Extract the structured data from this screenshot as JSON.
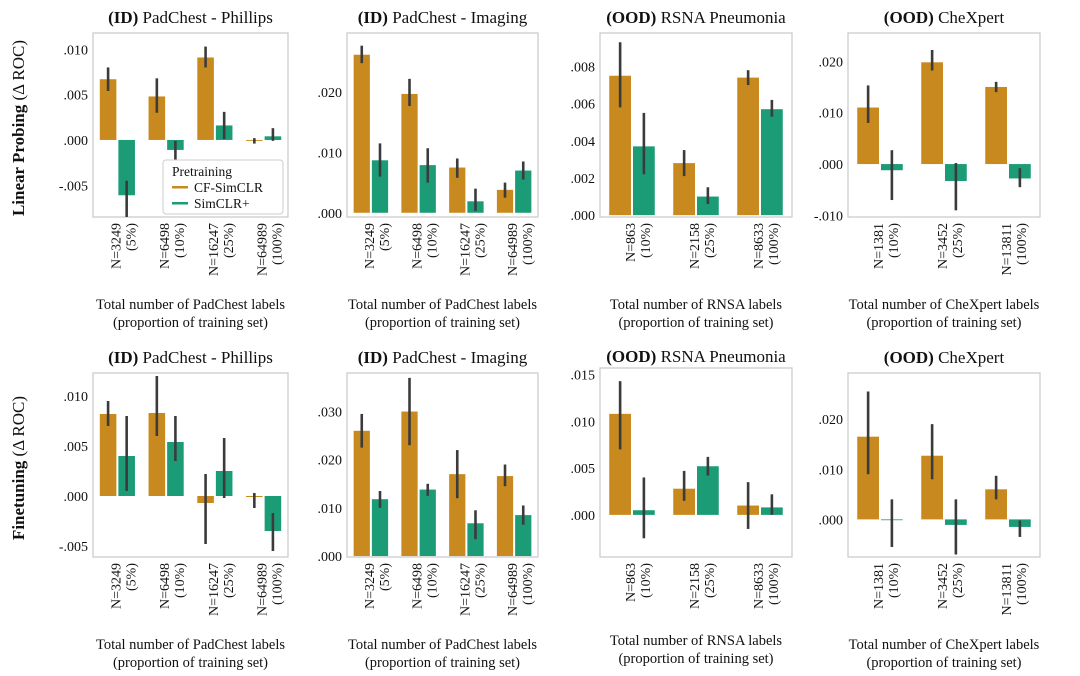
{
  "figure": {
    "row_labels": [
      {
        "bold": "Linear Probing",
        "rest": " (Δ ROC)"
      },
      {
        "bold": "Finetuning",
        "rest": " (Δ ROC)"
      }
    ],
    "legend": {
      "title": "Pretraining",
      "entries": [
        {
          "name": "CF-SimCLR",
          "color": "#c88a1e"
        },
        {
          "name": "SimCLR+",
          "color": "#1b9c76"
        }
      ]
    }
  },
  "chart_data": [
    {
      "type": "bar",
      "title_tag": "(ID)",
      "title_rest": " PadChest - Phillips",
      "xlabel_line1": "Total number of PadChest labels",
      "xlabel_line2": "(proportion of training set)",
      "ylabel": "Linear Probing (Δ ROC)",
      "categories": [
        {
          "n": "N=3249",
          "pct": "(5%)"
        },
        {
          "n": "N=6498",
          "pct": "(10%)"
        },
        {
          "n": "N=16247",
          "pct": "(25%)"
        },
        {
          "n": "N=64989",
          "pct": "(100%)"
        }
      ],
      "ylim": [
        -0.0085,
        0.0118
      ],
      "yticks": [
        {
          "v": 0.01,
          "label": ".010"
        },
        {
          "v": 0.005,
          "label": ".005"
        },
        {
          "v": 0.0,
          "label": ".000"
        },
        {
          "v": -0.005,
          "label": "-.005"
        }
      ],
      "series": [
        {
          "name": "CF-SimCLR",
          "values": [
            0.0067,
            0.0048,
            0.0091,
            -0.0001
          ],
          "ci": [
            [
              0.0054,
              0.008
            ],
            [
              0.003,
              0.0068
            ],
            [
              0.008,
              0.0103
            ],
            [
              -0.0004,
              0.0002
            ]
          ]
        },
        {
          "name": "SimCLR+",
          "values": [
            -0.0061,
            -0.0011,
            0.0016,
            0.0004
          ],
          "ci": [
            [
              -0.0085,
              -0.0045
            ],
            [
              -0.0022,
              -0.0001
            ],
            [
              0.0001,
              0.0031
            ],
            [
              -0.0001,
              0.0013
            ]
          ]
        }
      ]
    },
    {
      "type": "bar",
      "title_tag": "(ID)",
      "title_rest": " PadChest - Imaging",
      "xlabel_line1": "Total number of PadChest labels",
      "xlabel_line2": "(proportion of training set)",
      "ylabel": "Linear Probing (Δ ROC)",
      "categories": [
        {
          "n": "N=3249",
          "pct": "(5%)"
        },
        {
          "n": "N=6498",
          "pct": "(10%)"
        },
        {
          "n": "N=16247",
          "pct": "(25%)"
        },
        {
          "n": "N=64989",
          "pct": "(100%)"
        }
      ],
      "ylim": [
        -0.0007,
        0.0298
      ],
      "yticks": [
        {
          "v": 0.02,
          "label": ".020"
        },
        {
          "v": 0.01,
          "label": ".010"
        },
        {
          "v": 0.0,
          "label": ".000"
        }
      ],
      "series": [
        {
          "name": "CF-SimCLR",
          "values": [
            0.0262,
            0.0197,
            0.0075,
            0.0038
          ],
          "ci": [
            [
              0.0248,
              0.0277
            ],
            [
              0.0177,
              0.0222
            ],
            [
              0.0058,
              0.009
            ],
            [
              0.0025,
              0.005
            ]
          ]
        },
        {
          "name": "SimCLR+",
          "values": [
            0.0087,
            0.0079,
            0.0019,
            0.007
          ],
          "ci": [
            [
              0.006,
              0.0115
            ],
            [
              0.005,
              0.0107
            ],
            [
              0.0003,
              0.004
            ],
            [
              0.0055,
              0.0085
            ]
          ]
        }
      ]
    },
    {
      "type": "bar",
      "title_tag": "(OOD)",
      "title_rest": " RSNA Pneumonia",
      "xlabel_line1": "Total number of RNSA labels",
      "xlabel_line2": "(proportion of training set)",
      "ylabel": "Linear Probing (Δ ROC)",
      "categories": [
        {
          "n": "N=863",
          "pct": "(10%)"
        },
        {
          "n": "N=2158",
          "pct": "(25%)"
        },
        {
          "n": "N=8633",
          "pct": "(100%)"
        }
      ],
      "ylim": [
        -0.0001,
        0.0098
      ],
      "yticks": [
        {
          "v": 0.008,
          "label": ".008"
        },
        {
          "v": 0.006,
          "label": ".006"
        },
        {
          "v": 0.004,
          "label": ".004"
        },
        {
          "v": 0.002,
          "label": ".002"
        },
        {
          "v": 0.0,
          "label": ".000"
        }
      ],
      "series": [
        {
          "name": "CF-SimCLR",
          "values": [
            0.0075,
            0.0028,
            0.0074
          ],
          "ci": [
            [
              0.0058,
              0.0093
            ],
            [
              0.0021,
              0.0035
            ],
            [
              0.007,
              0.0078
            ]
          ]
        },
        {
          "name": "SimCLR+",
          "values": [
            0.0037,
            0.001,
            0.0057
          ],
          "ci": [
            [
              0.0022,
              0.0055
            ],
            [
              0.0006,
              0.0015
            ],
            [
              0.0053,
              0.0062
            ]
          ]
        }
      ]
    },
    {
      "type": "bar",
      "title_tag": "(OOD)",
      "title_rest": " CheXpert",
      "xlabel_line1": "Total number of CheXpert labels",
      "xlabel_line2": "(proportion of training set)",
      "ylabel": "Linear Probing (Δ ROC)",
      "categories": [
        {
          "n": "N=1381",
          "pct": "(10%)"
        },
        {
          "n": "N=3452",
          "pct": "(25%)"
        },
        {
          "n": "N=13811",
          "pct": "(100%)"
        }
      ],
      "ylim": [
        -0.0103,
        0.0255
      ],
      "yticks": [
        {
          "v": 0.02,
          "label": ".020"
        },
        {
          "v": 0.01,
          "label": ".010"
        },
        {
          "v": 0.0,
          "label": ".000"
        },
        {
          "v": -0.01,
          "label": "-.010"
        }
      ],
      "series": [
        {
          "name": "CF-SimCLR",
          "values": [
            0.011,
            0.0198,
            0.015
          ],
          "ci": [
            [
              0.008,
              0.0153
            ],
            [
              0.0182,
              0.0222
            ],
            [
              0.014,
              0.016
            ]
          ]
        },
        {
          "name": "SimCLR+",
          "values": [
            -0.0012,
            -0.0033,
            -0.0028
          ],
          "ci": [
            [
              -0.007,
              0.0027
            ],
            [
              -0.009,
              0.0002
            ],
            [
              -0.0045,
              -0.0008
            ]
          ]
        }
      ]
    },
    {
      "type": "bar",
      "title_tag": "(ID)",
      "title_rest": " PadChest - Phillips",
      "xlabel_line1": "Total number of PadChest labels",
      "xlabel_line2": "(proportion of training set)",
      "ylabel": "Finetuning (Δ ROC)",
      "categories": [
        {
          "n": "N=3249",
          "pct": "(5%)"
        },
        {
          "n": "N=6498",
          "pct": "(10%)"
        },
        {
          "n": "N=16247",
          "pct": "(25%)"
        },
        {
          "n": "N=64989",
          "pct": "(100%)"
        }
      ],
      "ylim": [
        -0.0061,
        0.0123
      ],
      "yticks": [
        {
          "v": 0.01,
          "label": ".010"
        },
        {
          "v": 0.005,
          "label": ".005"
        },
        {
          "v": 0.0,
          "label": ".000"
        },
        {
          "v": -0.005,
          "label": "-.005"
        }
      ],
      "series": [
        {
          "name": "CF-SimCLR",
          "values": [
            0.0082,
            0.0083,
            -0.0007,
            -0.0001
          ],
          "ci": [
            [
              0.007,
              0.0095
            ],
            [
              0.006,
              0.012
            ],
            [
              -0.0048,
              0.0022
            ],
            [
              -0.0012,
              0.0003
            ]
          ]
        },
        {
          "name": "SimCLR+",
          "values": [
            0.004,
            0.0054,
            0.0025,
            -0.0035
          ],
          "ci": [
            [
              0.0005,
              0.008
            ],
            [
              0.0035,
              0.008
            ],
            [
              -0.0002,
              0.0058
            ],
            [
              -0.0055,
              -0.0017
            ]
          ]
        }
      ]
    },
    {
      "type": "bar",
      "title_tag": "(ID)",
      "title_rest": " PadChest - Imaging",
      "xlabel_line1": "Total number of PadChest labels",
      "xlabel_line2": "(proportion of training set)",
      "ylabel": "Finetuning (Δ ROC)",
      "categories": [
        {
          "n": "N=3249",
          "pct": "(5%)"
        },
        {
          "n": "N=6498",
          "pct": "(10%)"
        },
        {
          "n": "N=16247",
          "pct": "(25%)"
        },
        {
          "n": "N=64989",
          "pct": "(100%)"
        }
      ],
      "ylim": [
        -0.0002,
        0.038
      ],
      "yticks": [
        {
          "v": 0.03,
          "label": ".030"
        },
        {
          "v": 0.02,
          "label": ".020"
        },
        {
          "v": 0.01,
          "label": ".010"
        },
        {
          "v": 0.0,
          "label": ".000"
        }
      ],
      "series": [
        {
          "name": "CF-SimCLR",
          "values": [
            0.026,
            0.03,
            0.017,
            0.0166
          ],
          "ci": [
            [
              0.0225,
              0.0295
            ],
            [
              0.023,
              0.037
            ],
            [
              0.012,
              0.022
            ],
            [
              0.0145,
              0.019
            ]
          ]
        },
        {
          "name": "SimCLR+",
          "values": [
            0.0118,
            0.0138,
            0.0068,
            0.0085
          ],
          "ci": [
            [
              0.01,
              0.0135
            ],
            [
              0.0125,
              0.015
            ],
            [
              0.0035,
              0.0095
            ],
            [
              0.0065,
              0.0105
            ]
          ]
        }
      ]
    },
    {
      "type": "bar",
      "title_tag": "(OOD)",
      "title_rest": " RSNA Pneumonia",
      "xlabel_line1": "Total number of RNSA labels",
      "xlabel_line2": "(proportion of training set)",
      "ylabel": "Finetuning (Δ ROC)",
      "categories": [
        {
          "n": "N=863",
          "pct": "(10%)"
        },
        {
          "n": "N=2158",
          "pct": "(25%)"
        },
        {
          "n": "N=8633",
          "pct": "(100%)"
        }
      ],
      "ylim": [
        -0.0045,
        0.0157
      ],
      "yticks": [
        {
          "v": 0.015,
          "label": ".015"
        },
        {
          "v": 0.01,
          "label": ".010"
        },
        {
          "v": 0.005,
          "label": ".005"
        },
        {
          "v": 0.0,
          "label": ".000"
        }
      ],
      "series": [
        {
          "name": "CF-SimCLR",
          "values": [
            0.0108,
            0.0028,
            0.001
          ],
          "ci": [
            [
              0.007,
              0.0143
            ],
            [
              0.0015,
              0.0047
            ],
            [
              -0.0015,
              0.0035
            ]
          ]
        },
        {
          "name": "SimCLR+",
          "values": [
            0.0005,
            0.0052,
            0.0008
          ],
          "ci": [
            [
              -0.0025,
              0.004
            ],
            [
              0.0042,
              0.0062
            ],
            [
              0.0,
              0.0022
            ]
          ]
        }
      ]
    },
    {
      "type": "bar",
      "title_tag": "(OOD)",
      "title_rest": " CheXpert",
      "xlabel_line1": "Total number of CheXpert labels",
      "xlabel_line2": "(proportion of training set)",
      "ylabel": "Finetuning (Δ ROC)",
      "categories": [
        {
          "n": "N=1381",
          "pct": "(10%)"
        },
        {
          "n": "N=3452",
          "pct": "(25%)"
        },
        {
          "n": "N=13811",
          "pct": "(100%)"
        }
      ],
      "ylim": [
        -0.0075,
        0.0292
      ],
      "yticks": [
        {
          "v": 0.02,
          "label": ".020"
        },
        {
          "v": 0.01,
          "label": ".010"
        },
        {
          "v": 0.0,
          "label": ".000"
        }
      ],
      "series": [
        {
          "name": "CF-SimCLR",
          "values": [
            0.0165,
            0.0127,
            0.006
          ],
          "ci": [
            [
              0.009,
              0.0255
            ],
            [
              0.008,
              0.019
            ],
            [
              0.004,
              0.0087
            ]
          ]
        },
        {
          "name": "SimCLR+",
          "values": [
            -0.0001,
            -0.0011,
            -0.0015
          ],
          "ci": [
            [
              -0.0055,
              0.004
            ],
            [
              -0.007,
              0.004
            ],
            [
              -0.0035,
              -0.0002
            ]
          ]
        }
      ]
    }
  ]
}
